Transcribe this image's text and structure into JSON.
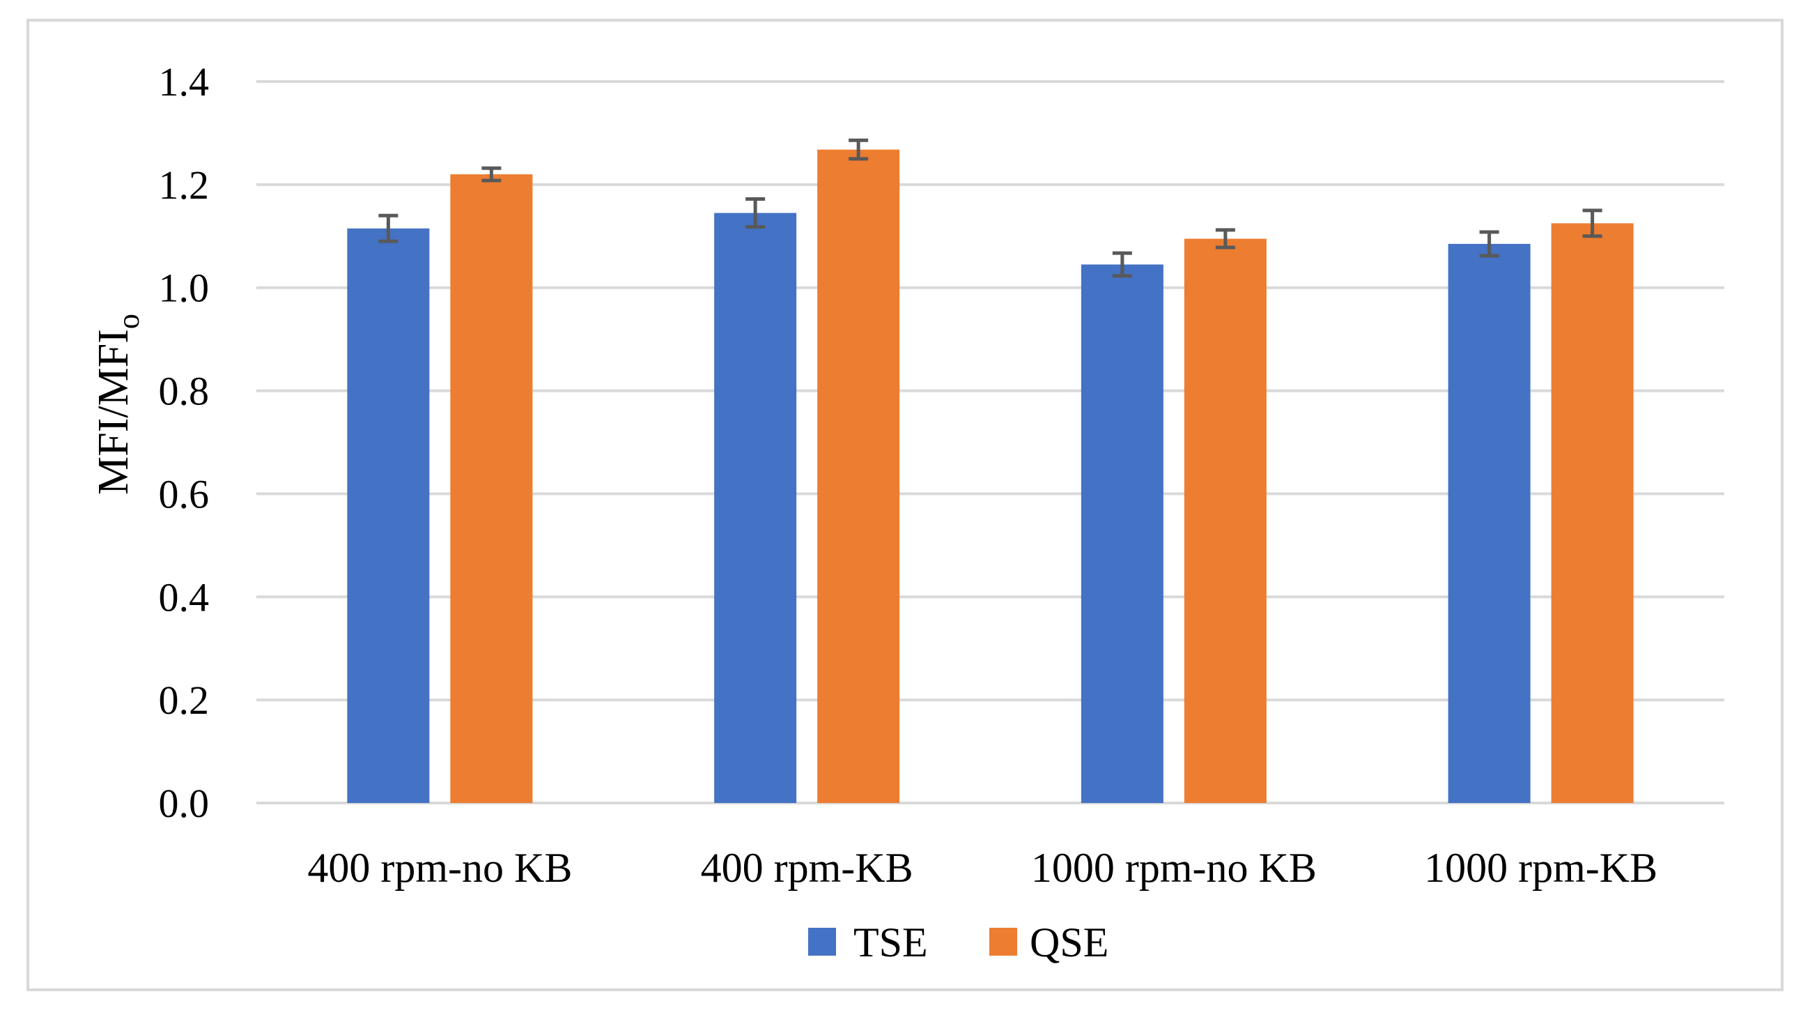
{
  "chart_data": {
    "type": "bar",
    "title": "",
    "xlabel": "",
    "ylabel": "MFI/MFI",
    "ylabel_subscript": "o",
    "ylim": [
      0,
      1.4
    ],
    "yticks": [
      "0.0",
      "0.2",
      "0.4",
      "0.6",
      "0.8",
      "1.0",
      "1.2",
      "1.4"
    ],
    "ytick_values": [
      0,
      0.2,
      0.4,
      0.6,
      0.8,
      1.0,
      1.2,
      1.4
    ],
    "grid": true,
    "legend_position": "bottom",
    "categories": [
      "400 rpm-no KB",
      "400 rpm-KB",
      "1000 rpm-no KB",
      "1000 rpm-KB"
    ],
    "series": [
      {
        "name": "TSE",
        "color": "#4472c4",
        "values": [
          1.115,
          1.145,
          1.045,
          1.085
        ],
        "errors": [
          0.025,
          0.027,
          0.022,
          0.023
        ]
      },
      {
        "name": "QSE",
        "color": "#ed7d31",
        "values": [
          1.22,
          1.268,
          1.095,
          1.125
        ],
        "errors": [
          0.012,
          0.018,
          0.017,
          0.025
        ]
      }
    ]
  }
}
